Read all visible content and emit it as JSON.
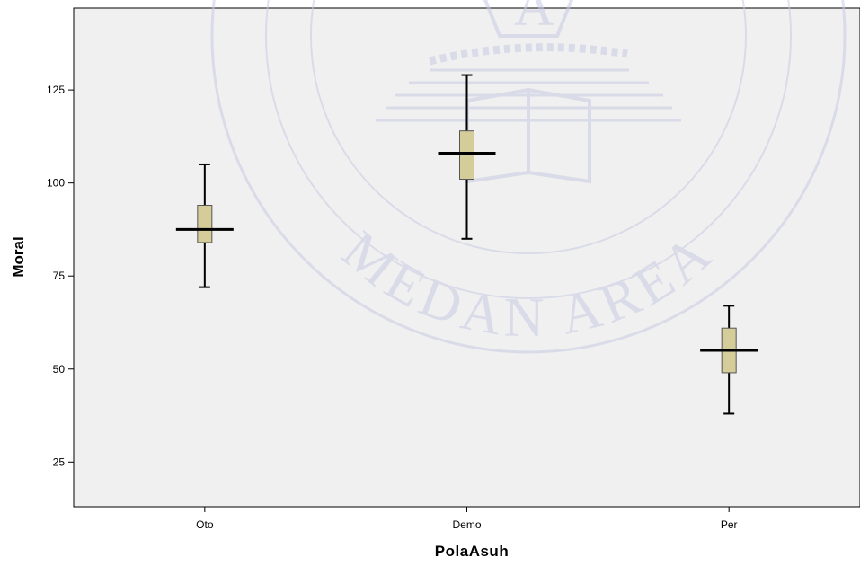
{
  "chart_data": {
    "type": "boxplot",
    "xlabel": "PolaAsuh",
    "ylabel": "Moral",
    "ylim": [
      13,
      147
    ],
    "yticks": [
      25,
      50,
      75,
      100,
      125
    ],
    "categories": [
      "Oto",
      "Demo",
      "Per"
    ],
    "boxes": [
      {
        "category": "Oto",
        "min": 72,
        "q1": 84,
        "median": 87.5,
        "q3": 94,
        "max": 105
      },
      {
        "category": "Demo",
        "min": 85,
        "q1": 101,
        "median": 108,
        "q3": 114,
        "max": 129
      },
      {
        "category": "Per",
        "min": 38,
        "q1": 49,
        "median": 55,
        "q3": 61,
        "max": 67
      }
    ],
    "grid": false,
    "colors": {
      "box_fill": "#d4cd9a",
      "plot_bg": "#f0f0f0",
      "whisker": "#000000"
    }
  },
  "watermark": {
    "text": "MEDAN AREA",
    "letter": "A"
  }
}
